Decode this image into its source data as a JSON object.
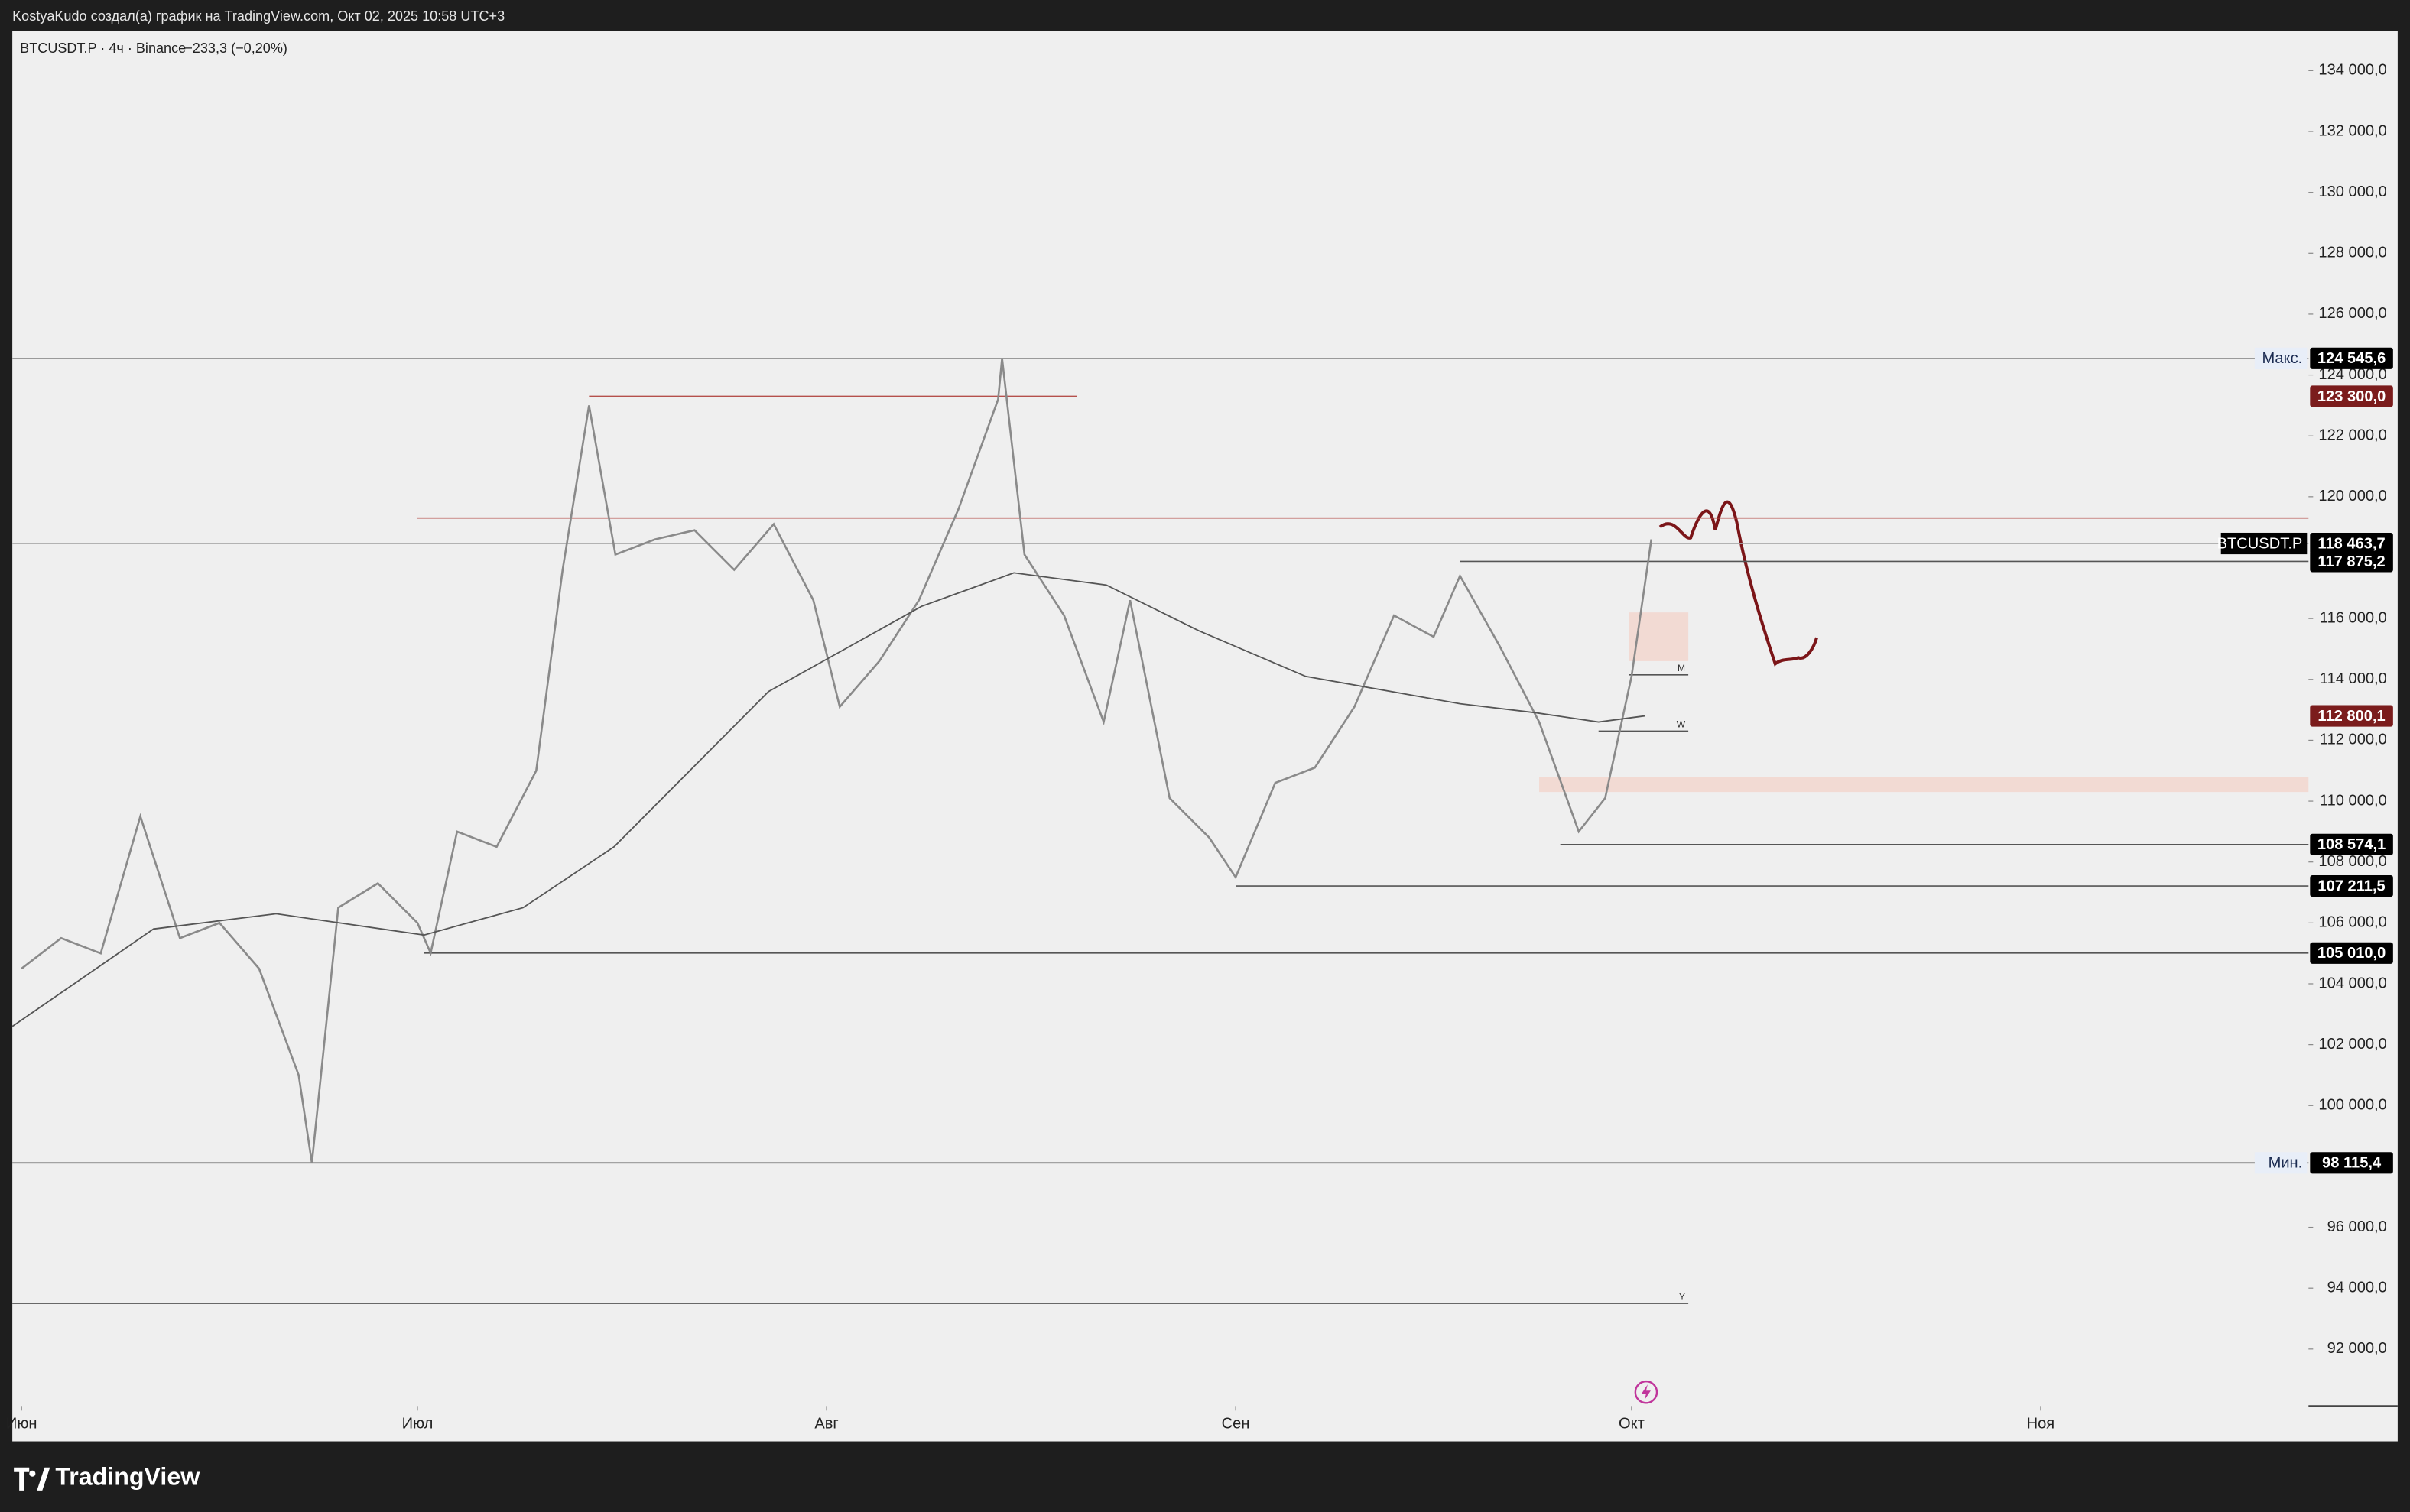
{
  "header": {
    "attribution": "KostyaKudo создал(а) график на TradingView.com, Окт 02, 2025 10:58 UTC+3",
    "brand": "TradingView"
  },
  "chart_data": {
    "type": "line",
    "legend_title": "BTCUSDT.P · 4ч · Binance",
    "change": "−233,3 (−0,20%)",
    "xlim": [
      -0.7,
      173.3
    ],
    "xticks": [
      {
        "value": 0,
        "label": "Июн"
      },
      {
        "value": 30,
        "label": "Июл"
      },
      {
        "value": 61,
        "label": "Авг"
      },
      {
        "value": 92,
        "label": "Сен"
      },
      {
        "value": 122,
        "label": "Окт"
      },
      {
        "value": 153,
        "label": "Ноя"
      }
    ],
    "ylim": [
      90130,
      135310
    ],
    "yticks": [
      {
        "value": 92000,
        "label": "92 000,0"
      },
      {
        "value": 94000,
        "label": "94 000,0"
      },
      {
        "value": 96000,
        "label": "96 000,0"
      },
      {
        "value": 100000,
        "label": "100 000,0"
      },
      {
        "value": 102000,
        "label": "102 000,0"
      },
      {
        "value": 104000,
        "label": "104 000,0"
      },
      {
        "value": 106000,
        "label": "106 000,0"
      },
      {
        "value": 108000,
        "label": "108 000,0"
      },
      {
        "value": 110000,
        "label": "110 000,0"
      },
      {
        "value": 112000,
        "label": "112 000,0"
      },
      {
        "value": 114000,
        "label": "114 000,0"
      },
      {
        "value": 116000,
        "label": "116 000,0"
      },
      {
        "value": 120000,
        "label": "120 000,0"
      },
      {
        "value": 122000,
        "label": "122 000,0"
      },
      {
        "value": 124000,
        "label": "124 000,0"
      },
      {
        "value": 126000,
        "label": "126 000,0"
      },
      {
        "value": 128000,
        "label": "128 000,0"
      },
      {
        "value": 130000,
        "label": "130 000,0"
      },
      {
        "value": 132000,
        "label": "132 000,0"
      },
      {
        "value": 134000,
        "label": "134 000,0"
      }
    ],
    "series": [
      {
        "name": "BTCUSDT.P",
        "color": "#8a8a8a",
        "x": [
          0,
          3,
          6,
          9,
          12,
          15,
          18,
          21,
          22,
          24,
          27,
          30,
          31,
          33,
          36,
          39,
          41,
          43,
          45,
          48,
          51,
          54,
          57,
          60,
          62,
          65,
          68,
          71,
          74,
          74.3,
          76,
          79,
          82,
          84,
          87,
          90,
          92,
          95,
          98,
          101,
          104,
          107,
          109,
          112,
          115,
          118,
          120,
          122,
          123.5
        ],
        "values": [
          104500,
          105500,
          105000,
          109500,
          105500,
          106000,
          104500,
          101000,
          98115,
          106500,
          107300,
          106000,
          105010,
          109000,
          108500,
          111000,
          117600,
          123000,
          118100,
          118600,
          118900,
          117600,
          119100,
          116600,
          113100,
          114600,
          116600,
          119600,
          123200,
          124545,
          118100,
          116100,
          112600,
          116600,
          110100,
          108800,
          107500,
          110600,
          111100,
          113100,
          116100,
          115400,
          117400,
          115100,
          112600,
          109000,
          110100,
          114100,
          118600
        ]
      },
      {
        "color": "#555555",
        "x": [
          -0.7,
          10,
          19.3,
          30.5,
          38,
          44.9,
          56.6,
          68.2,
          75.2,
          82.2,
          89.2,
          97.3,
          109,
          114.8,
          119.5,
          123
        ],
        "values": [
          102600,
          105800,
          106300,
          105600,
          106500,
          108500,
          113600,
          116400,
          117500,
          117100,
          115600,
          114100,
          113200,
          112900,
          112600,
          112800
        ]
      }
    ],
    "levels": [
      {
        "value": 124545.6,
        "label": "124 545,6",
        "tag": "Макс.",
        "from": -0.7,
        "color": "#000000",
        "line_color": "#9a9a9a"
      },
      {
        "value": 123300.0,
        "label": "123 300,0",
        "from": 43,
        "to": 80,
        "color": "#7b1c1c",
        "line_color": "#b5504c"
      },
      {
        "value": 119300,
        "from": 30,
        "line_color": "#b5504c"
      },
      {
        "value": 118463.7,
        "label": "118 463,7",
        "tag": "BTCUSDT.P",
        "from": -0.7,
        "color": "#000000",
        "line_color": "#aaaaaa"
      },
      {
        "value": 117875.2,
        "label": "117 875,2",
        "from": 109,
        "color": "#000000",
        "line_color": "#555555"
      },
      {
        "value": 112800.1,
        "label": "112 800,1",
        "color": "#7b1c1c"
      },
      {
        "value": 108574.1,
        "label": "108 574,1",
        "from": 116.6,
        "color": "#000000",
        "line_color": "#555555"
      },
      {
        "value": 107211.5,
        "label": "107 211,5",
        "from": 92,
        "color": "#000000",
        "line_color": "#555555"
      },
      {
        "value": 105010.0,
        "label": "105 010,0",
        "from": 30.5,
        "color": "#000000",
        "line_color": "#555555"
      },
      {
        "value": 98115.4,
        "label": "98 115,4",
        "tag": "Мин.",
        "from": -0.7,
        "color": "#000000",
        "line_color": "#555555"
      },
      {
        "value": 114150,
        "from": 121.8,
        "to": 126.3,
        "end_tag": "M",
        "line_color": "#555555"
      },
      {
        "value": 112300,
        "from": 119.5,
        "to": 126.3,
        "end_tag": "W",
        "line_color": "#555555"
      },
      {
        "value": 93500,
        "from": -0.7,
        "to": 126.3,
        "end_tag": "Y",
        "line_color": "#555555"
      }
    ],
    "zones": [
      {
        "x": [
          121.8,
          126.3
        ],
        "y": [
          114600,
          116200
        ],
        "color": "#f3d5cc"
      },
      {
        "x": [
          115,
          173.3
        ],
        "y": [
          110300,
          110800
        ],
        "color": "#f3d5cc"
      }
    ]
  }
}
